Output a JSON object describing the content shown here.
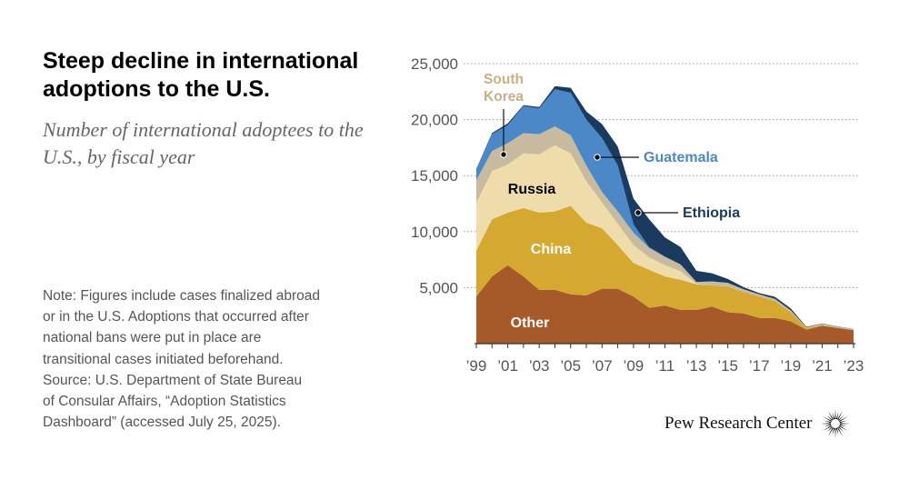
{
  "header": {
    "title": "Steep decline in international adoptions to the U.S.",
    "subtitle": "Number of international adoptees to the U.S., by fiscal year"
  },
  "notes": [
    "Note: Figures include cases finalized abroad",
    "or in the U.S. Adoptions that occurred after",
    "national bans were put in place are",
    "transitional cases initiated beforehand.",
    "Source: U.S. Department of State Bureau",
    "of Consular Affairs, “Adoption Statistics",
    "Dashboard” (accessed July 25, 2025)."
  ],
  "brand": {
    "name": "Pew Research Center",
    "logo_icon": "sunburst-icon"
  },
  "colors": {
    "other": "#A65A2A",
    "china": "#D5A930",
    "russia": "#EEDCAA",
    "south_korea": "#C7BA9E",
    "guatemala": "#4A88C8",
    "ethiopia": "#1B3A60",
    "label_south_korea": "#C7B183",
    "label_guatemala": "#4A88C8",
    "label_ethiopia": "#1B3A60"
  },
  "chart_data": {
    "type": "area",
    "stacked": true,
    "x": [
      1999,
      2000,
      2001,
      2002,
      2003,
      2004,
      2005,
      2006,
      2007,
      2008,
      2009,
      2010,
      2011,
      2012,
      2013,
      2014,
      2015,
      2016,
      2017,
      2018,
      2019,
      2020,
      2021,
      2022,
      2023
    ],
    "x_tick_labels": [
      "’99",
      "’01",
      "’03",
      "’05",
      "’07",
      "’09",
      "’11",
      "’13",
      "’15",
      "’17",
      "’19",
      "’21",
      "’23"
    ],
    "x_tick_years": [
      1999,
      2001,
      2003,
      2005,
      2007,
      2009,
      2011,
      2013,
      2015,
      2017,
      2019,
      2021,
      2023
    ],
    "y_ticks": [
      5000,
      10000,
      15000,
      20000,
      25000
    ],
    "y_tick_labels": [
      "5,000",
      "10,000",
      "15,000",
      "20,000",
      "25,000"
    ],
    "ylim": [
      0,
      25000
    ],
    "grid": true,
    "series": [
      {
        "name": "Other",
        "color_key": "other",
        "values": [
          4200,
          6000,
          7000,
          6000,
          4800,
          4800,
          4400,
          4300,
          4900,
          4900,
          4200,
          3200,
          3400,
          3000,
          3000,
          3300,
          2800,
          2700,
          2300,
          2300,
          2000,
          1250,
          1600,
          1400,
          1200
        ]
      },
      {
        "name": "China",
        "color_key": "china",
        "values": [
          4100,
          5100,
          4700,
          6100,
          6900,
          7000,
          7900,
          6500,
          5400,
          3900,
          3000,
          3400,
          2600,
          2700,
          2300,
          1900,
          2300,
          1900,
          1900,
          1500,
          800,
          130,
          20,
          10,
          10
        ]
      },
      {
        "name": "Russia",
        "color_key": "russia",
        "values": [
          4300,
          4300,
          4300,
          4900,
          5200,
          5900,
          4700,
          3700,
          2300,
          1900,
          1600,
          1100,
          1000,
          750,
          50,
          0,
          0,
          0,
          0,
          0,
          0,
          0,
          0,
          0,
          0
        ]
      },
      {
        "name": "South Korea",
        "color_key": "south_korea",
        "values": [
          2000,
          1800,
          1900,
          1800,
          1800,
          1700,
          1600,
          1400,
          950,
          1100,
          1100,
          850,
          750,
          600,
          150,
          350,
          320,
          250,
          210,
          200,
          180,
          70,
          150,
          120,
          100
        ]
      },
      {
        "name": "Guatemala",
        "color_key": "guatemala",
        "values": [
          1000,
          1500,
          1600,
          2400,
          2300,
          3300,
          3800,
          4100,
          4800,
          4100,
          750,
          50,
          30,
          20,
          10,
          10,
          10,
          10,
          0,
          0,
          0,
          0,
          0,
          0,
          0
        ]
      },
      {
        "name": "Ethiopia",
        "color_key": "ethiopia",
        "values": [
          20,
          100,
          160,
          100,
          130,
          290,
          440,
          730,
          1250,
          1700,
          2300,
          2500,
          1700,
          1560,
          990,
          720,
          340,
          180,
          100,
          180,
          180,
          50,
          20,
          10,
          5
        ]
      }
    ],
    "labels": [
      {
        "series": "South Korea",
        "lines": [
          "South",
          "Korea"
        ],
        "color_key": "label_south_korea",
        "leader": true
      },
      {
        "series": "Russia",
        "lines": [
          "Russia"
        ],
        "color": "#000000"
      },
      {
        "series": "China",
        "lines": [
          "China"
        ],
        "color": "#ffffff"
      },
      {
        "series": "Other",
        "lines": [
          "Other"
        ],
        "color": "#ffffff"
      },
      {
        "series": "Guatemala",
        "lines": [
          "Guatemala"
        ],
        "color_key": "label_guatemala",
        "leader": true
      },
      {
        "series": "Ethiopia",
        "lines": [
          "Ethiopia"
        ],
        "color_key": "label_ethiopia",
        "leader": true
      }
    ]
  }
}
